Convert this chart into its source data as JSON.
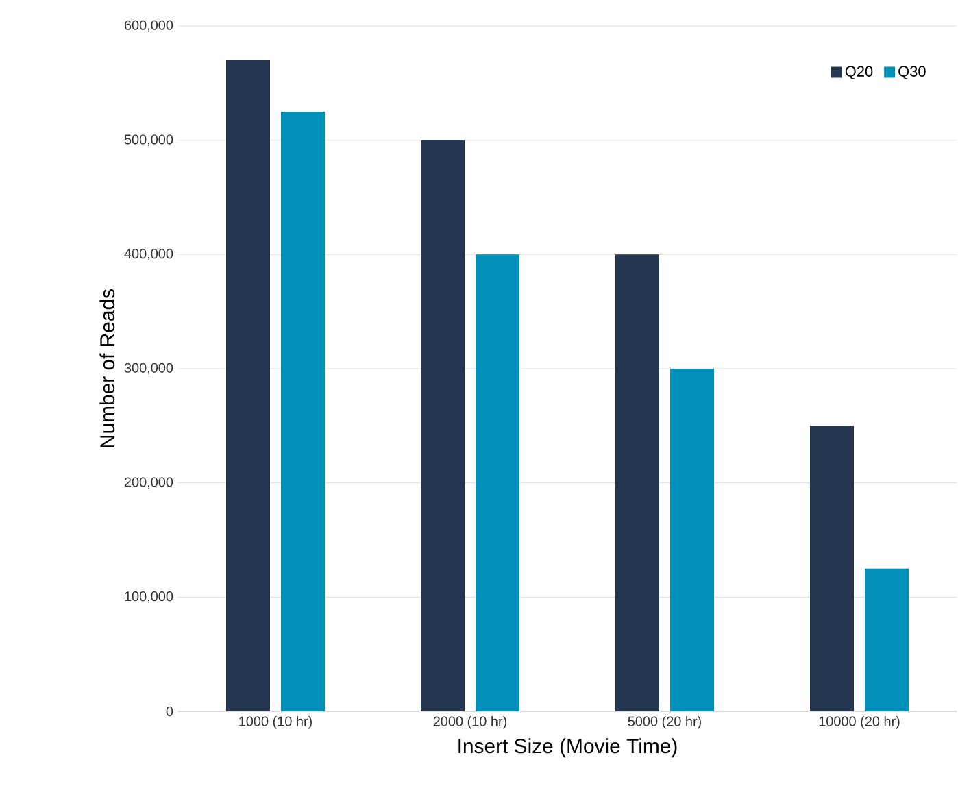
{
  "chart_data": {
    "type": "bar",
    "xlabel": "Insert Size (Movie Time)",
    "ylabel": "Number of Reads",
    "categories": [
      "1000 (10 hr)",
      "2000 (10 hr)",
      "5000 (20 hr)",
      "10000 (20 hr)"
    ],
    "series": [
      {
        "name": "Q20",
        "color": "#243550",
        "values": [
          570000,
          500000,
          400000,
          250000
        ]
      },
      {
        "name": "Q30",
        "color": "#0090b8",
        "values": [
          525000,
          400000,
          300000,
          125000
        ]
      }
    ],
    "ylim": [
      0,
      600000
    ],
    "yticks": [
      {
        "value": 0,
        "label": "0"
      },
      {
        "value": 100000,
        "label": "100,000"
      },
      {
        "value": 200000,
        "label": "200,000"
      },
      {
        "value": 300000,
        "label": "300,000"
      },
      {
        "value": 400000,
        "label": "400,000"
      },
      {
        "value": 500000,
        "label": "500,000"
      },
      {
        "value": 600000,
        "label": "600,000"
      }
    ],
    "grid": "y",
    "legend": "top right"
  }
}
